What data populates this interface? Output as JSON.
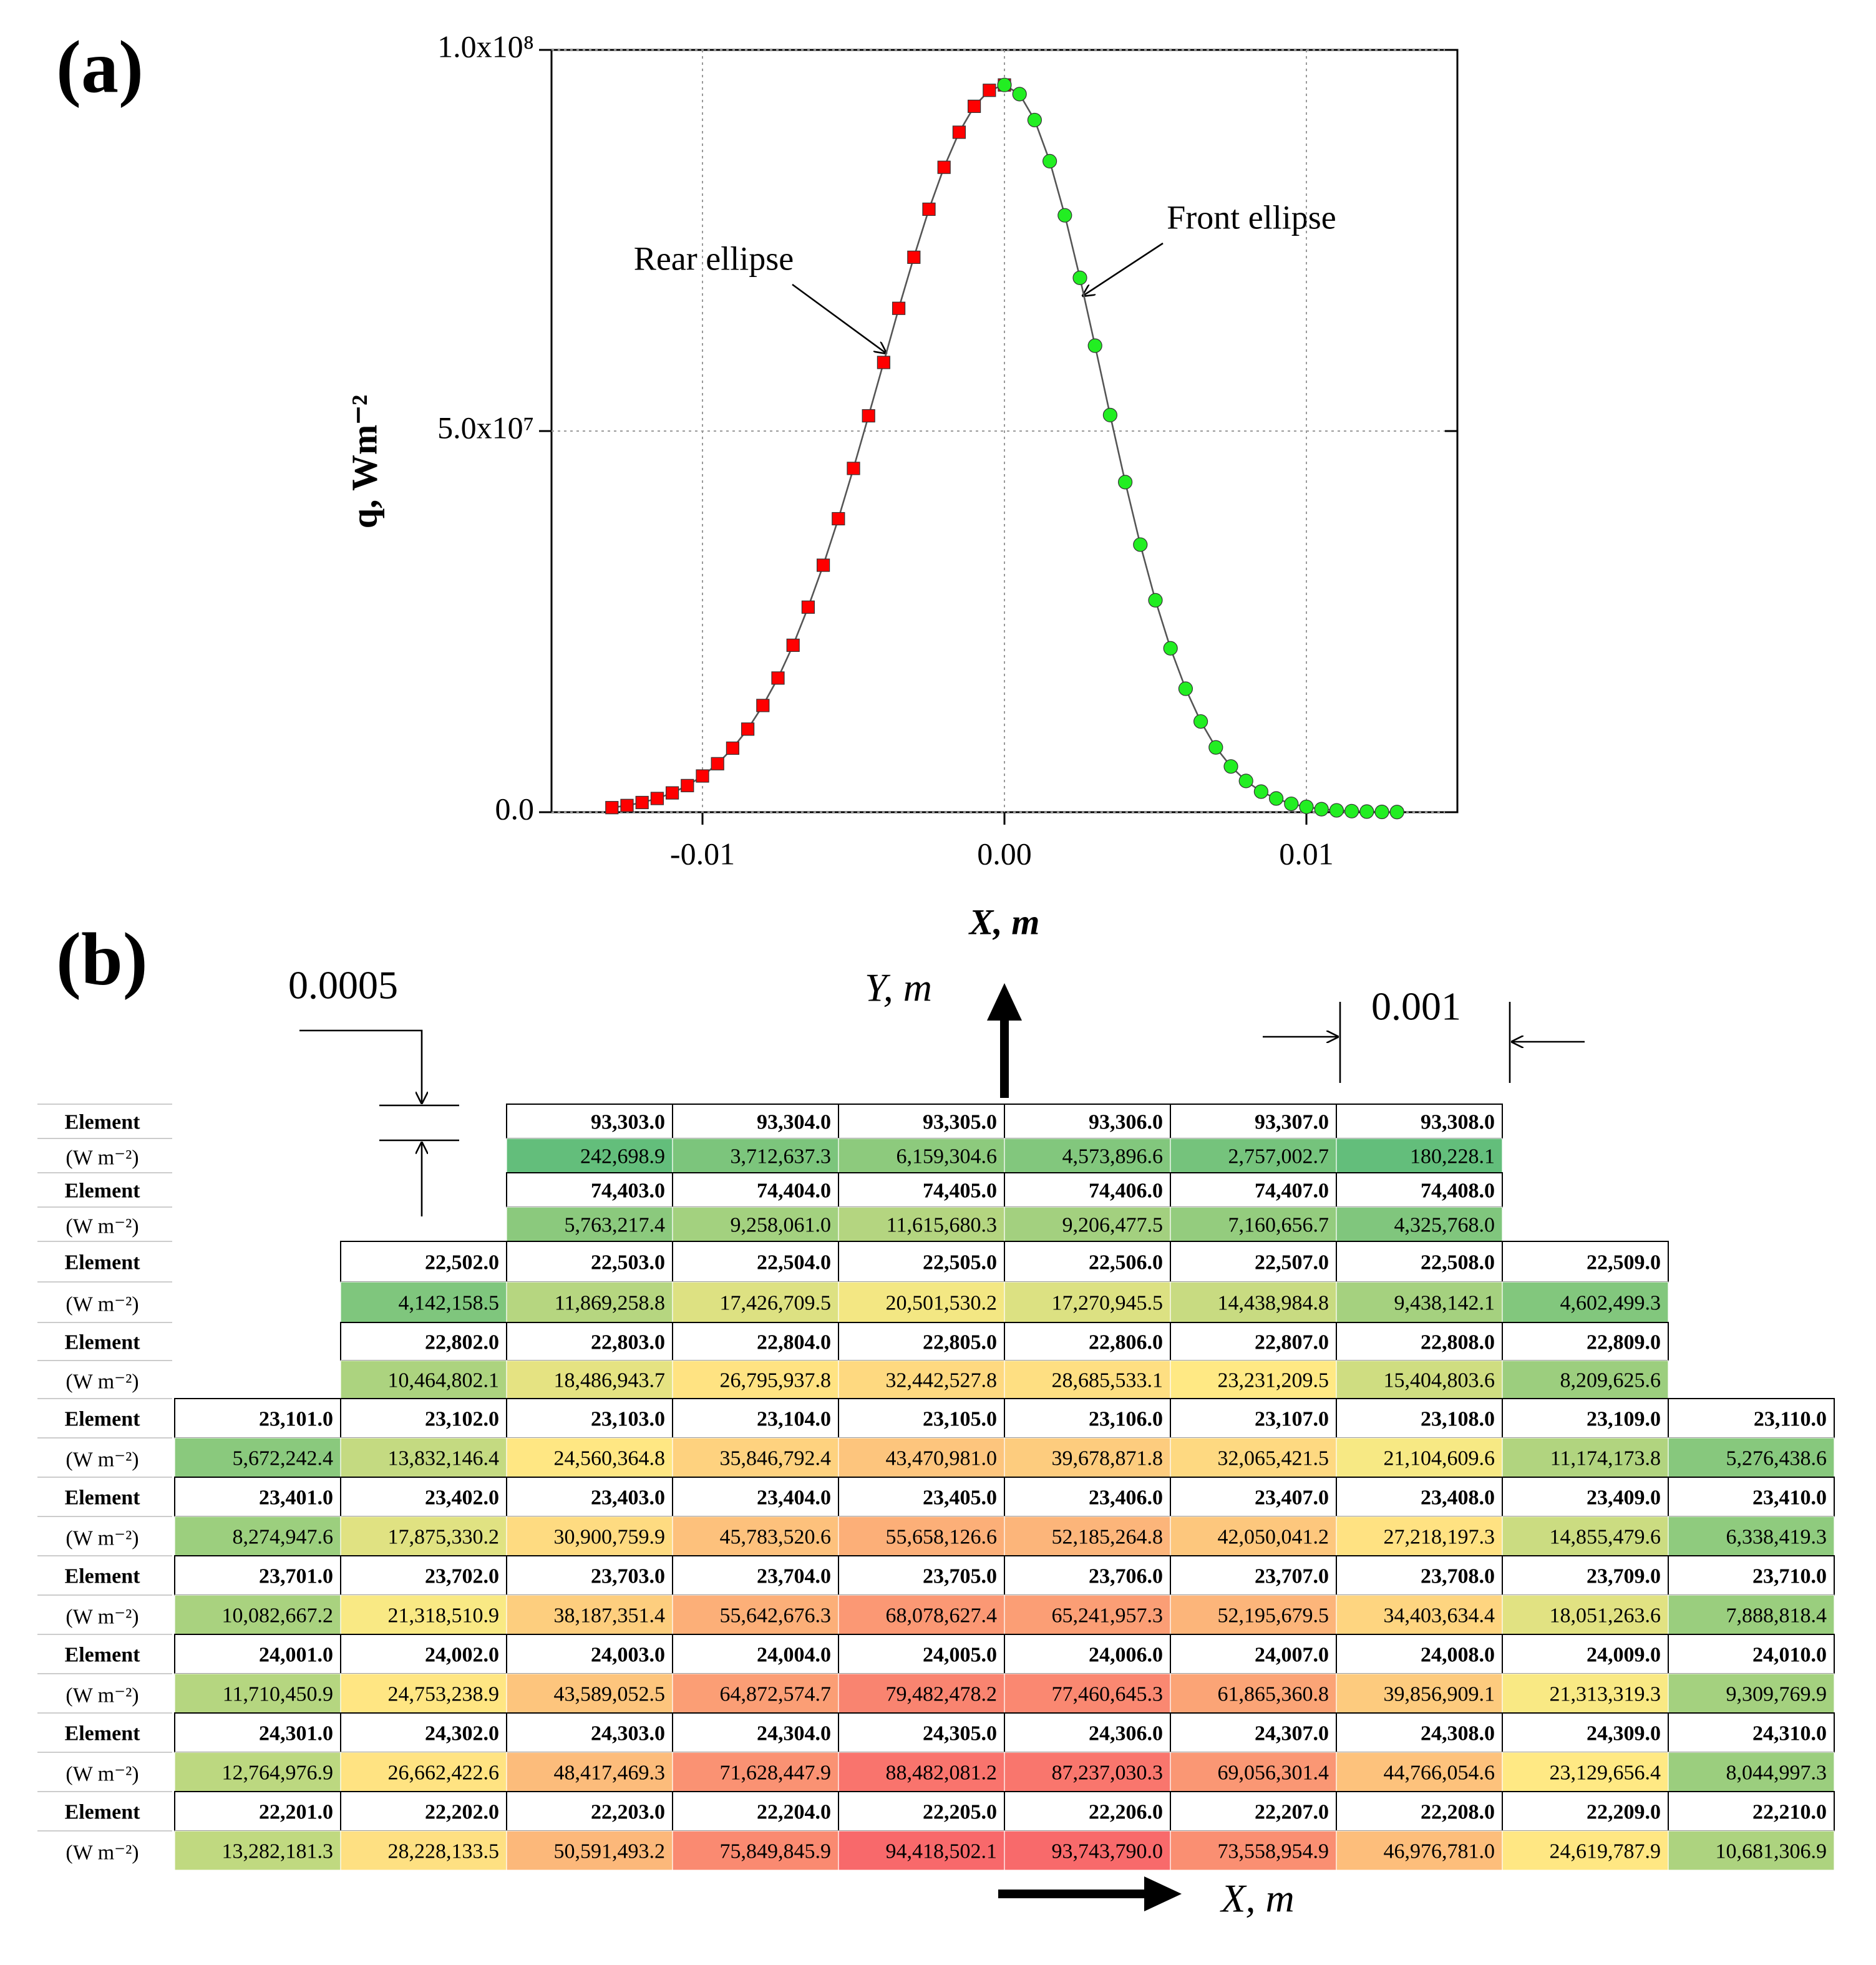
{
  "chart_data": {
    "type": "scatter",
    "panel_label": "(a)",
    "x_label": "X, m",
    "y_label": "q, Wm⁻²",
    "xlim": [
      -0.015,
      0.015
    ],
    "xticks": [
      {
        "value": -0.01,
        "label": "-0.01"
      },
      {
        "value": 0,
        "label": "0.00"
      },
      {
        "value": 0.01,
        "label": "0.01"
      }
    ],
    "ylim": [
      0,
      100000000
    ],
    "yticks": [
      {
        "value": 0,
        "label": "0.0"
      },
      {
        "value": 50000000,
        "label": "5.0x10⁷"
      },
      {
        "value": 100000000,
        "label": "1.0x10⁸"
      }
    ],
    "grid": true,
    "line_color": "#555555",
    "series": [
      {
        "name": "Rear ellipse",
        "color": "#ff0000",
        "marker": "square",
        "x": [
          -0.013,
          -0.0125,
          -0.012,
          -0.0115,
          -0.011,
          -0.0105,
          -0.01,
          -0.0095,
          -0.009,
          -0.0085,
          -0.008,
          -0.0075,
          -0.007,
          -0.0065,
          -0.006,
          -0.0055,
          -0.005,
          -0.0045,
          -0.004,
          -0.0035,
          -0.003,
          -0.0025,
          -0.002,
          -0.0015,
          -0.001,
          -0.0005,
          0
        ],
        "values": [
          600000,
          880000,
          1270000,
          1800000,
          2530000,
          3490000,
          4750000,
          6360000,
          8400000,
          10900000,
          14000000,
          17600000,
          21900000,
          26900000,
          32400000,
          38500000,
          45100000,
          52000000,
          59000000,
          66100000,
          72800000,
          79100000,
          84600000,
          89200000,
          92600000,
          94700000,
          95400000
        ]
      },
      {
        "name": "Front ellipse",
        "color": "#22ee22",
        "marker": "circle",
        "x": [
          0,
          0.0005,
          0.001,
          0.0015,
          0.002,
          0.0025,
          0.003,
          0.0035,
          0.004,
          0.0045,
          0.005,
          0.0055,
          0.006,
          0.0065,
          0.007,
          0.0075,
          0.008,
          0.0085,
          0.009,
          0.0095,
          0.01,
          0.0105,
          0.011,
          0.0115,
          0.012,
          0.0125,
          0.013
        ],
        "values": [
          95400000,
          94200000,
          90800000,
          85400000,
          78300000,
          70100000,
          61200000,
          52100000,
          43300000,
          35100000,
          27800000,
          21500000,
          16200000,
          11900000,
          8500000,
          6000000,
          4100000,
          2700000,
          1800000,
          1100000,
          700000,
          400000,
          240000,
          140000,
          80000,
          40000,
          20000
        ]
      }
    ]
  },
  "table_panel": {
    "panel_label": "(b)",
    "dimension_y": "0.0005",
    "dimension_x": "0.001",
    "y_axis": "Y, m",
    "x_axis": "X, m",
    "color_scale": [
      "#63be7b",
      "#ffeb84",
      "#f8696b"
    ],
    "rows": [
      {
        "label": "Element",
        "unit": "(W m⁻²)",
        "elements": [
          null,
          null,
          "93,303.0",
          "93,304.0",
          "93,305.0",
          "93,306.0",
          "93,307.0",
          "93,308.0",
          null,
          null
        ],
        "values": [
          null,
          null,
          "242,698.9",
          "3,712,637.3",
          "6,159,304.6",
          "4,573,896.6",
          "2,757,002.7",
          "180,228.1",
          null,
          null
        ]
      },
      {
        "label": "Element",
        "unit": "(W m⁻²)",
        "elements": [
          null,
          null,
          "74,403.0",
          "74,404.0",
          "74,405.0",
          "74,406.0",
          "74,407.0",
          "74,408.0",
          null,
          null
        ],
        "values": [
          null,
          null,
          "5,763,217.4",
          "9,258,061.0",
          "11,615,680.3",
          "9,206,477.5",
          "7,160,656.7",
          "4,325,768.0",
          null,
          null
        ]
      },
      {
        "label": "Element",
        "unit": "(W m⁻²)",
        "elements": [
          null,
          "22,502.0",
          "22,503.0",
          "22,504.0",
          "22,505.0",
          "22,506.0",
          "22,507.0",
          "22,508.0",
          "22,509.0",
          null
        ],
        "values": [
          null,
          "4,142,158.5",
          "11,869,258.8",
          "17,426,709.5",
          "20,501,530.2",
          "17,270,945.5",
          "14,438,984.8",
          "9,438,142.1",
          "4,602,499.3",
          null
        ]
      },
      {
        "label": "Element",
        "unit": "(W m⁻²)",
        "elements": [
          null,
          "22,802.0",
          "22,803.0",
          "22,804.0",
          "22,805.0",
          "22,806.0",
          "22,807.0",
          "22,808.0",
          "22,809.0",
          null
        ],
        "values": [
          null,
          "10,464,802.1",
          "18,486,943.7",
          "26,795,937.8",
          "32,442,527.8",
          "28,685,533.1",
          "23,231,209.5",
          "15,404,803.6",
          "8,209,625.6",
          null
        ]
      },
      {
        "label": "Element",
        "unit": "(W m⁻²)",
        "elements": [
          "23,101.0",
          "23,102.0",
          "23,103.0",
          "23,104.0",
          "23,105.0",
          "23,106.0",
          "23,107.0",
          "23,108.0",
          "23,109.0",
          "23,110.0"
        ],
        "values": [
          "5,672,242.4",
          "13,832,146.4",
          "24,560,364.8",
          "35,846,792.4",
          "43,470,981.0",
          "39,678,871.8",
          "32,065,421.5",
          "21,104,609.6",
          "11,174,173.8",
          "5,276,438.6"
        ]
      },
      {
        "label": "Element",
        "unit": "(W m⁻²)",
        "elements": [
          "23,401.0",
          "23,402.0",
          "23,403.0",
          "23,404.0",
          "23,405.0",
          "23,406.0",
          "23,407.0",
          "23,408.0",
          "23,409.0",
          "23,410.0"
        ],
        "values": [
          "8,274,947.6",
          "17,875,330.2",
          "30,900,759.9",
          "45,783,520.6",
          "55,658,126.6",
          "52,185,264.8",
          "42,050,041.2",
          "27,218,197.3",
          "14,855,479.6",
          "6,338,419.3"
        ]
      },
      {
        "label": "Element",
        "unit": "(W m⁻²)",
        "elements": [
          "23,701.0",
          "23,702.0",
          "23,703.0",
          "23,704.0",
          "23,705.0",
          "23,706.0",
          "23,707.0",
          "23,708.0",
          "23,709.0",
          "23,710.0"
        ],
        "values": [
          "10,082,667.2",
          "21,318,510.9",
          "38,187,351.4",
          "55,642,676.3",
          "68,078,627.4",
          "65,241,957.3",
          "52,195,679.5",
          "34,403,634.4",
          "18,051,263.6",
          "7,888,818.4"
        ]
      },
      {
        "label": "Element",
        "unit": "(W m⁻²)",
        "elements": [
          "24,001.0",
          "24,002.0",
          "24,003.0",
          "24,004.0",
          "24,005.0",
          "24,006.0",
          "24,007.0",
          "24,008.0",
          "24,009.0",
          "24,010.0"
        ],
        "values": [
          "11,710,450.9",
          "24,753,238.9",
          "43,589,052.5",
          "64,872,574.7",
          "79,482,478.2",
          "77,460,645.3",
          "61,865,360.8",
          "39,856,909.1",
          "21,313,319.3",
          "9,309,769.9"
        ]
      },
      {
        "label": "Element",
        "unit": "(W m⁻²)",
        "elements": [
          "24,301.0",
          "24,302.0",
          "24,303.0",
          "24,304.0",
          "24,305.0",
          "24,306.0",
          "24,307.0",
          "24,308.0",
          "24,309.0",
          "24,310.0"
        ],
        "values": [
          "12,764,976.9",
          "26,662,422.6",
          "48,417,469.3",
          "71,628,447.9",
          "88,482,081.2",
          "87,237,030.3",
          "69,056,301.4",
          "44,766,054.6",
          "23,129,656.4",
          "8,044,997.3"
        ]
      },
      {
        "label": "Element",
        "unit": "(W m⁻²)",
        "elements": [
          "22,201.0",
          "22,202.0",
          "22,203.0",
          "22,204.0",
          "22,205.0",
          "22,206.0",
          "22,207.0",
          "22,208.0",
          "22,209.0",
          "22,210.0"
        ],
        "values": [
          "13,282,181.3",
          "28,228,133.5",
          "50,591,493.2",
          "75,849,845.9",
          "94,418,502.1",
          "93,743,790.0",
          "73,558,954.9",
          "46,976,781.0",
          "24,619,787.9",
          "10,681,306.9"
        ]
      }
    ]
  }
}
